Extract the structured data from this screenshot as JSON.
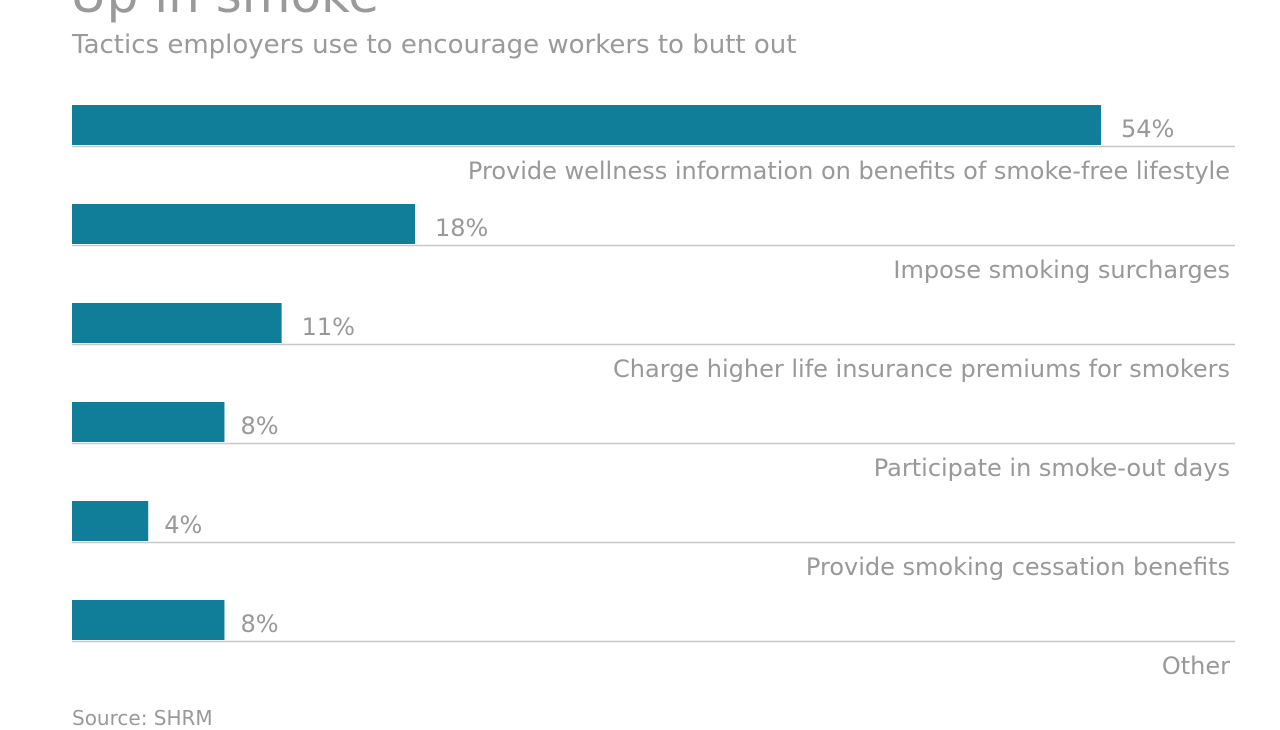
{
  "chart_data": {
    "type": "bar",
    "orientation": "horizontal",
    "title": "Up in smoke",
    "subtitle": "Tactics employers use to encourage workers to butt out",
    "source": "Source: SHRM",
    "categories": [
      "Provide wellness information on benefits of smoke-free lifestyle",
      "Impose smoking surcharges",
      "Charge higher life insurance premiums for smokers",
      "Participate in smoke-out days",
      "Provide smoking cessation benefits",
      "Other"
    ],
    "values": [
      54,
      18,
      11,
      8,
      4,
      8
    ],
    "value_labels": [
      "54%",
      "18%",
      "11%",
      "8%",
      "4%",
      "8%"
    ],
    "unit": "%",
    "bar_color": "#107d99",
    "grid": false,
    "legend": "none"
  }
}
